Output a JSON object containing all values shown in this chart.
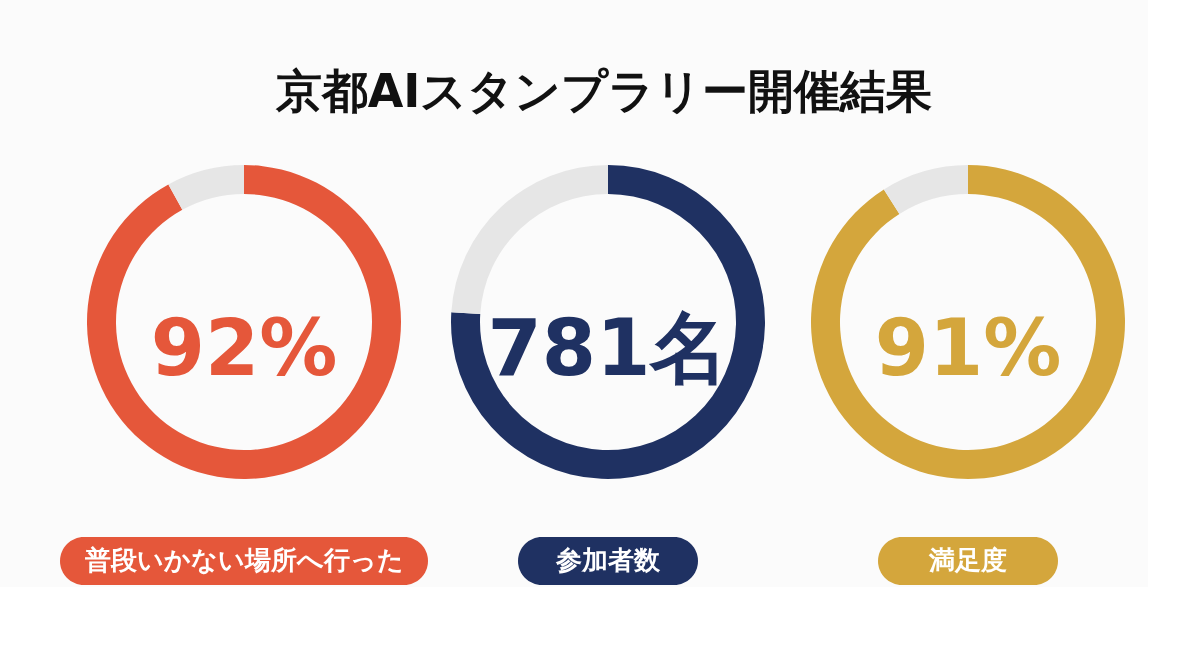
{
  "chart_data": [
    {
      "type": "donut",
      "title": "京都AIスタンプラリー開催結果",
      "categories": [
        "普段いかない場所へ行った",
        null
      ],
      "values": [
        92,
        8
      ],
      "colors": [
        "#e5573a",
        "#e6e6e6"
      ],
      "value_labels": [
        "92%",
        null
      ]
    },
    {
      "type": "donut",
      "categories": [
        "参加者数",
        null
      ],
      "values": [
        76,
        24
      ],
      "colors": [
        "#1f3162",
        "#e6e6e6"
      ],
      "annotations": [
        "781名"
      ]
    },
    {
      "type": "donut",
      "categories": [
        "満足度",
        null
      ],
      "values": [
        91,
        9
      ],
      "colors": [
        "#d4a63c",
        "#e6e6e6"
      ],
      "value_labels": [
        "91%",
        null
      ]
    }
  ]
}
